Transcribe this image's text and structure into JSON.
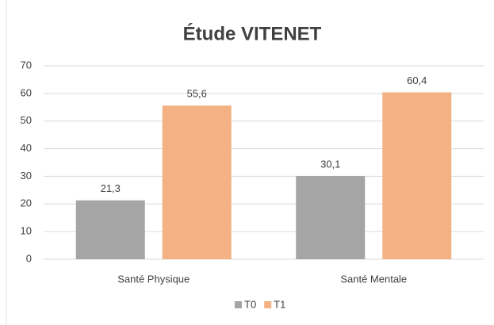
{
  "chart_data": {
    "type": "bar",
    "title": "Étude VITENET",
    "categories": [
      "Santé Physique",
      "Santé Mentale"
    ],
    "series": [
      {
        "name": "T0",
        "color": "#a5a5a5",
        "values": [
          21.3,
          30.1
        ],
        "value_labels": [
          "21,3",
          "30,1"
        ]
      },
      {
        "name": "T1",
        "color": "#f4b183",
        "values": [
          55.6,
          60.4
        ],
        "value_labels": [
          "55,6",
          "60,4"
        ]
      }
    ],
    "ylim": [
      0,
      70
    ],
    "yticks": [
      0,
      10,
      20,
      30,
      40,
      50,
      60,
      70
    ],
    "grid": true,
    "legend": "bottom"
  }
}
